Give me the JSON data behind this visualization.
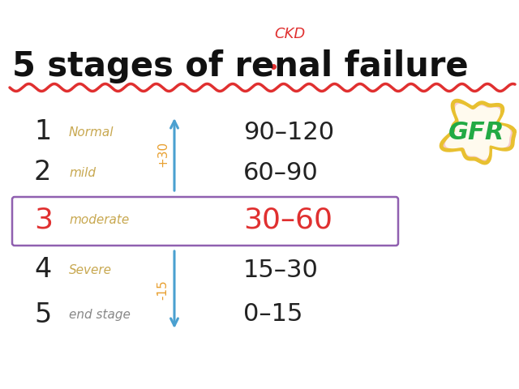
{
  "title_main": "5 stages of renal failure",
  "title_ckd": "CKD",
  "bg_color": "#ffffff",
  "stages": [
    {
      "num": "1",
      "label": "Normal",
      "range": "90–120",
      "num_color": "#222222",
      "label_color": "#c8a850",
      "range_color": "#222222",
      "highlight": false
    },
    {
      "num": "2",
      "label": "mild",
      "range": "60–90",
      "num_color": "#222222",
      "label_color": "#c8a850",
      "range_color": "#222222",
      "highlight": false
    },
    {
      "num": "3",
      "label": "moderate",
      "range": "30–60",
      "num_color": "#e03030",
      "label_color": "#c8a850",
      "range_color": "#e03030",
      "highlight": true
    },
    {
      "num": "4",
      "label": "Severe",
      "range": "15–30",
      "num_color": "#222222",
      "label_color": "#c8a850",
      "range_color": "#222222",
      "highlight": false
    },
    {
      "num": "5",
      "label": "end stage",
      "range": "0–15",
      "num_color": "#222222",
      "label_color": "#888888",
      "range_color": "#222222",
      "highlight": false
    }
  ],
  "arrow_up_color": "#4aa0d0",
  "arrow_down_color": "#4aa0d0",
  "arrow_label_up": "+30",
  "arrow_label_down": "-15",
  "arrow_label_color": "#e8a030",
  "highlight_box_color": "#9060b0",
  "gfr_text_color": "#22aa44",
  "gfr_fill_color": "#fffaee",
  "gfr_border_color": "#e8c030",
  "gfr_outer_color": "#e03030",
  "wavy_line_color": "#e03030",
  "title_color": "#111111",
  "ckd_color": "#e03030"
}
